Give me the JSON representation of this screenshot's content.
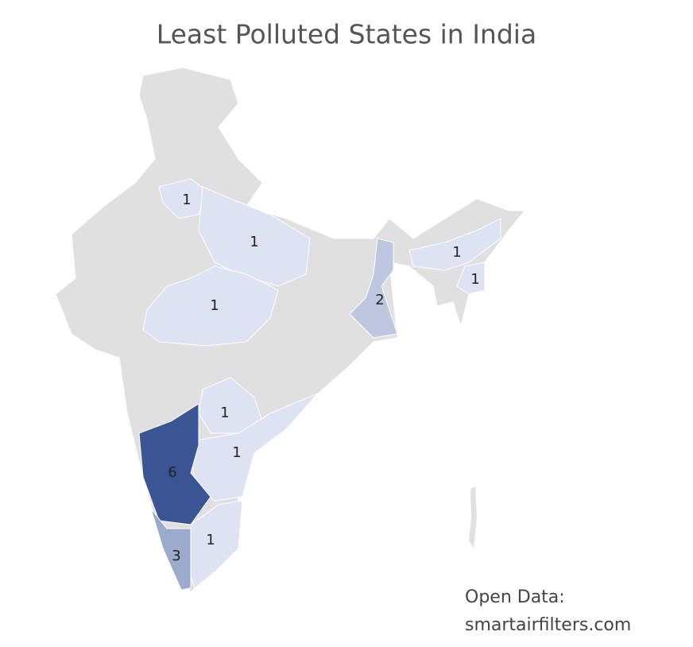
{
  "chart_data": {
    "type": "choropleth",
    "title": "Least Polluted States in India",
    "values": [
      1,
      1,
      1,
      2,
      1,
      1,
      1,
      1,
      6,
      1,
      3
    ],
    "colors": {
      "low": "#dde3f2",
      "high": "#3b5594"
    },
    "base_color": "#e0e0e0",
    "annotation": [
      "Open Data:",
      "smartairfilters.com"
    ]
  }
}
